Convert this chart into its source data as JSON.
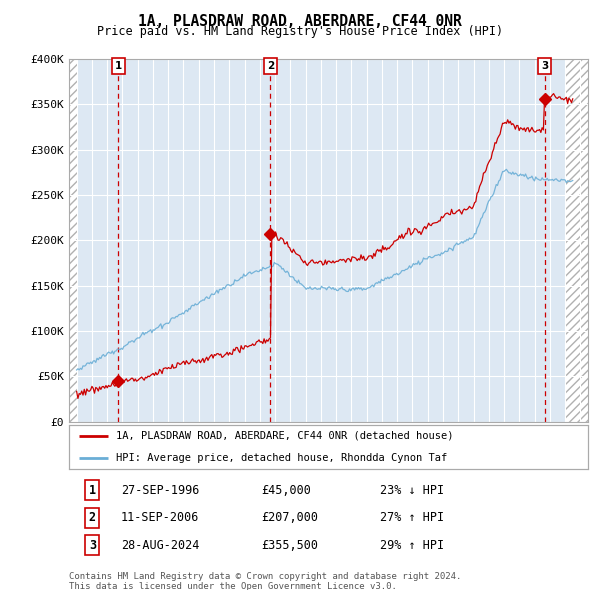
{
  "title": "1A, PLASDRAW ROAD, ABERDARE, CF44 0NR",
  "subtitle": "Price paid vs. HM Land Registry's House Price Index (HPI)",
  "legend_line1": "1A, PLASDRAW ROAD, ABERDARE, CF44 0NR (detached house)",
  "legend_line2": "HPI: Average price, detached house, Rhondda Cynon Taf",
  "footer1": "Contains HM Land Registry data © Crown copyright and database right 2024.",
  "footer2": "This data is licensed under the Open Government Licence v3.0.",
  "transactions": [
    {
      "num": 1,
      "date": "27-SEP-1996",
      "price": 45000,
      "hpi_text": "23% ↓ HPI",
      "x": 1996.74
    },
    {
      "num": 2,
      "date": "11-SEP-2006",
      "price": 207000,
      "hpi_text": "27% ↑ HPI",
      "x": 2006.7
    },
    {
      "num": 3,
      "date": "28-AUG-2024",
      "price": 355500,
      "hpi_text": "29% ↑ HPI",
      "x": 2024.66
    }
  ],
  "red_line_color": "#cc0000",
  "blue_line_color": "#6aaed6",
  "dashed_line_color": "#cc0000",
  "ylim": [
    0,
    400000
  ],
  "xlim_start": 1993.5,
  "xlim_end": 2027.5,
  "hatch_left_end": 1994.0,
  "hatch_right_start": 2026.0,
  "yticks": [
    0,
    50000,
    100000,
    150000,
    200000,
    250000,
    300000,
    350000,
    400000
  ],
  "ytick_labels": [
    "£0",
    "£50K",
    "£100K",
    "£150K",
    "£200K",
    "£250K",
    "£300K",
    "£350K",
    "£400K"
  ],
  "xticks": [
    1994,
    1995,
    1996,
    1997,
    1998,
    1999,
    2000,
    2001,
    2002,
    2003,
    2004,
    2005,
    2006,
    2007,
    2008,
    2009,
    2010,
    2011,
    2012,
    2013,
    2014,
    2015,
    2016,
    2017,
    2018,
    2019,
    2020,
    2021,
    2022,
    2023,
    2024,
    2025,
    2026,
    2027
  ],
  "table_rows": [
    [
      "1",
      "27-SEP-1996",
      "£45,000",
      "23% ↓ HPI"
    ],
    [
      "2",
      "11-SEP-2006",
      "£207,000",
      "27% ↑ HPI"
    ],
    [
      "3",
      "28-AUG-2024",
      "£355,500",
      "29% ↑ HPI"
    ]
  ]
}
